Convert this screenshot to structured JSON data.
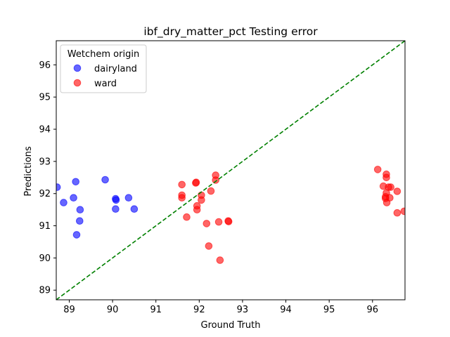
{
  "chart_data": {
    "type": "scatter",
    "title": "ibf_dry_matter_pct Testing error",
    "xlabel": "Ground Truth",
    "ylabel": "Predictions",
    "xlim": [
      88.7,
      96.75
    ],
    "ylim": [
      88.7,
      96.75
    ],
    "xticks": [
      "89",
      "90",
      "91",
      "92",
      "93",
      "94",
      "95",
      "96"
    ],
    "yticks": [
      "89",
      "90",
      "91",
      "92",
      "93",
      "94",
      "95",
      "96"
    ],
    "grid": false,
    "legend": {
      "title": "Wetchem origin",
      "placement": "top-left"
    },
    "reference_line": {
      "style": "dashed",
      "color": "#008000",
      "from": [
        88.7,
        88.7
      ],
      "to": [
        96.75,
        96.75
      ]
    },
    "series": [
      {
        "name": "dairyland",
        "color": "#0000ff",
        "points": [
          [
            88.72,
            92.2
          ],
          [
            88.87,
            91.72
          ],
          [
            89.1,
            91.87
          ],
          [
            89.15,
            92.37
          ],
          [
            89.25,
            91.5
          ],
          [
            89.24,
            91.15
          ],
          [
            89.17,
            90.72
          ],
          [
            89.83,
            92.43
          ],
          [
            90.08,
            91.8
          ],
          [
            90.07,
            91.84
          ],
          [
            90.07,
            91.52
          ],
          [
            90.37,
            91.87
          ],
          [
            90.5,
            91.52
          ]
        ]
      },
      {
        "name": "ward",
        "color": "#ff0000",
        "points": [
          [
            91.6,
            92.28
          ],
          [
            91.6,
            91.95
          ],
          [
            91.6,
            91.87
          ],
          [
            91.71,
            91.27
          ],
          [
            91.92,
            92.33
          ],
          [
            91.93,
            92.35
          ],
          [
            91.95,
            91.62
          ],
          [
            91.95,
            91.5
          ],
          [
            92.05,
            91.95
          ],
          [
            92.05,
            91.8
          ],
          [
            92.17,
            91.07
          ],
          [
            92.22,
            90.37
          ],
          [
            92.27,
            92.08
          ],
          [
            92.38,
            92.57
          ],
          [
            92.38,
            92.42
          ],
          [
            92.45,
            91.12
          ],
          [
            92.48,
            89.93
          ],
          [
            92.67,
            91.15
          ],
          [
            92.68,
            91.13
          ],
          [
            96.12,
            92.75
          ],
          [
            96.25,
            92.23
          ],
          [
            96.32,
            92.6
          ],
          [
            96.32,
            92.5
          ],
          [
            96.37,
            92.2
          ],
          [
            96.42,
            92.2
          ],
          [
            96.32,
            92.02
          ],
          [
            96.3,
            91.9
          ],
          [
            96.3,
            91.85
          ],
          [
            96.4,
            91.87
          ],
          [
            96.33,
            91.72
          ],
          [
            96.57,
            92.07
          ],
          [
            96.57,
            91.4
          ],
          [
            96.73,
            91.45
          ]
        ]
      }
    ]
  }
}
